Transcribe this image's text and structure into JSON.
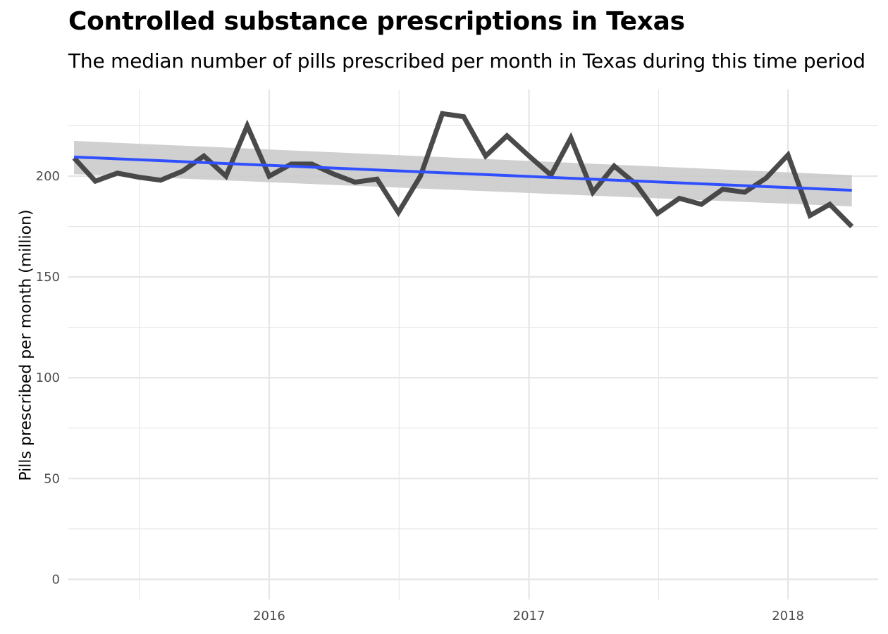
{
  "chart_data": {
    "type": "line",
    "title": "Controlled substance prescriptions in Texas",
    "subtitle": "The median number of pills prescribed per month in Texas during this time period",
    "xlabel": "",
    "ylabel": "Pills prescribed per month (million)",
    "xlim": [
      "2015-03-24",
      "2018-05-08"
    ],
    "ylim": [
      -10,
      243
    ],
    "x_tick_labels": [
      "2016",
      "2017",
      "2018"
    ],
    "x_ticks": [
      "2016-01-01",
      "2017-01-01",
      "2018-01-01"
    ],
    "y_tick_labels": [
      "0",
      "50",
      "100",
      "150",
      "200"
    ],
    "y_ticks": [
      0,
      50,
      100,
      150,
      200
    ],
    "grid": true,
    "legend": "none",
    "colors": {
      "series": "#404040",
      "trend": "#3050ff",
      "confidence_band": "#c8c8c8",
      "grid": "#e6e6e6"
    },
    "x": [
      "2015-04-01",
      "2015-05-01",
      "2015-06-01",
      "2015-07-01",
      "2015-08-01",
      "2015-09-01",
      "2015-10-01",
      "2015-11-01",
      "2015-12-01",
      "2016-01-01",
      "2016-02-01",
      "2016-03-01",
      "2016-04-01",
      "2016-05-01",
      "2016-06-01",
      "2016-07-01",
      "2016-08-01",
      "2016-09-01",
      "2016-10-01",
      "2016-11-01",
      "2016-12-01",
      "2017-01-01",
      "2017-02-01",
      "2017-03-01",
      "2017-04-01",
      "2017-05-01",
      "2017-06-01",
      "2017-07-01",
      "2017-08-01",
      "2017-09-01",
      "2017-10-01",
      "2017-11-01",
      "2017-12-01",
      "2018-01-01",
      "2018-02-01",
      "2018-03-01",
      "2018-04-01"
    ],
    "series": [
      {
        "values": [
          209,
          197.5,
          201.5,
          199.5,
          198,
          202.5,
          210,
          200,
          225,
          200,
          206,
          206,
          201,
          197,
          198.5,
          182,
          200,
          231,
          229.5,
          210,
          220,
          210,
          200.5,
          219,
          192,
          205,
          196,
          181.5,
          189,
          186,
          193.5,
          192,
          199,
          210.5,
          180.5,
          186,
          175
        ]
      }
    ],
    "trend": {
      "type": "linear",
      "start": {
        "x": "2015-04-01",
        "y": 209.5
      },
      "end": {
        "x": "2018-04-01",
        "y": 193
      },
      "ci_lower_start": 201,
      "ci_upper_start": 217.5,
      "ci_lower_end": 185,
      "ci_upper_end": 200.5
    }
  }
}
